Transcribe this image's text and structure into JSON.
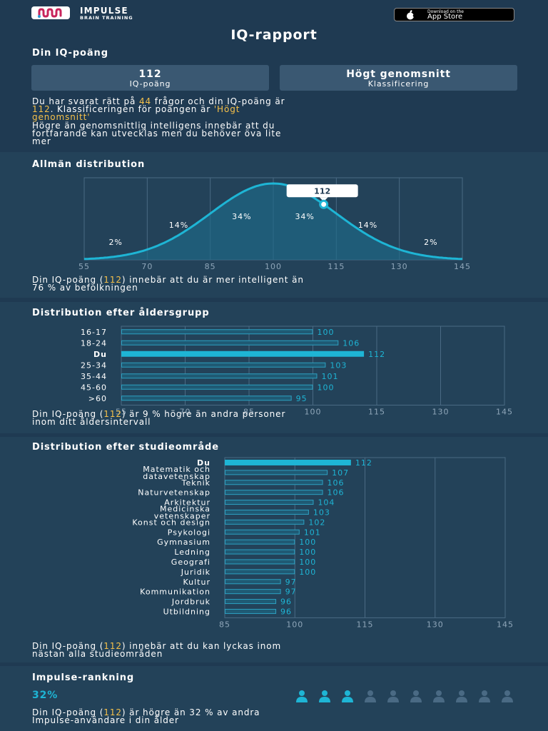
{
  "header": {
    "brand": "IMPULSE",
    "brand_sub": "BRAIN TRAINING",
    "appstore_small": "Download on the",
    "appstore_big": "App Store"
  },
  "page_title": "IQ-rapport",
  "score_section": {
    "heading": "Din IQ-poäng",
    "score_value": "112",
    "score_label": "IQ-poäng",
    "class_value": "Högt genomsnitt",
    "class_label": "Klassificering",
    "p1_a": "Du har svarat rätt på ",
    "p1_b": "44",
    "p1_c": " frågor och din IQ-poäng är",
    "p1_d": "112",
    "p1_e": ". Klassificeringen för poängen är ",
    "p1_f": "'Högt",
    "p1_g": "genomsnitt'",
    "p2_line1": "Högre än genomsnittlig intelligens innebär att du",
    "p2_line2": "fortfarande kan utvecklas men du behöver öva lite",
    "p2_line3": "mer"
  },
  "colors": {
    "background": "#1f3a52",
    "section": "#234259",
    "accent": "#1eb5d5",
    "highlight": "#f5c04a",
    "card": "#3a5872"
  },
  "chart_data": [
    {
      "type": "area",
      "title": "Allmän distribution",
      "x_ticks": [
        55,
        70,
        85,
        100,
        115,
        130,
        145
      ],
      "xlim": [
        55,
        145
      ],
      "mean": 100,
      "sd": 15,
      "segment_labels": [
        {
          "x": 62.5,
          "label": "2%"
        },
        {
          "x": 77.5,
          "label": "14%"
        },
        {
          "x": 92.5,
          "label": "34%"
        },
        {
          "x": 107.5,
          "label": "34%"
        },
        {
          "x": 122.5,
          "label": "14%"
        },
        {
          "x": 137.5,
          "label": "2%"
        }
      ],
      "marker": {
        "x": 112,
        "label": "112"
      },
      "caption_a": "Din IQ-poäng (",
      "caption_b": "112",
      "caption_c": ") innebär att du är mer intelligent än",
      "caption_d": "76 % av befolkningen"
    },
    {
      "type": "bar",
      "title": "Distribution efter åldersgrupp",
      "xlim": [
        55,
        145
      ],
      "x_ticks": [
        55,
        70,
        85,
        100,
        115,
        130,
        145
      ],
      "bars": [
        {
          "label": "16-17",
          "value": 100,
          "highlight": false
        },
        {
          "label": "18-24",
          "value": 106,
          "highlight": false
        },
        {
          "label": "Du",
          "value": 112,
          "highlight": true
        },
        {
          "label": "25-34",
          "value": 103,
          "highlight": false
        },
        {
          "label": "35-44",
          "value": 101,
          "highlight": false
        },
        {
          "label": "45-60",
          "value": 100,
          "highlight": false
        },
        {
          "label": ">60",
          "value": 95,
          "highlight": false
        }
      ],
      "caption_a": "Din IQ-poäng (",
      "caption_b": "112",
      "caption_c": ") är 9 % högre än andra personer",
      "caption_d": "inom ditt åldersintervall"
    },
    {
      "type": "bar",
      "title": "Distribution efter studieområde",
      "xlim": [
        85,
        145
      ],
      "x_ticks": [
        85,
        100,
        115,
        130,
        145
      ],
      "bars": [
        {
          "label": "Du",
          "value": 112,
          "highlight": true
        },
        {
          "label": [
            "Matematik och",
            "datavetenskap"
          ],
          "value": 107,
          "highlight": false
        },
        {
          "label": "Teknik",
          "value": 106,
          "highlight": false
        },
        {
          "label": "Naturvetenskap",
          "value": 106,
          "highlight": false
        },
        {
          "label": "Arkitektur",
          "value": 104,
          "highlight": false
        },
        {
          "label": [
            "Medicinska",
            "vetenskaper"
          ],
          "value": 103,
          "highlight": false
        },
        {
          "label": "Konst och design",
          "value": 102,
          "highlight": false
        },
        {
          "label": "Psykologi",
          "value": 101,
          "highlight": false
        },
        {
          "label": "Gymnasium",
          "value": 100,
          "highlight": false
        },
        {
          "label": "Ledning",
          "value": 100,
          "highlight": false
        },
        {
          "label": "Geografi",
          "value": 100,
          "highlight": false
        },
        {
          "label": "Juridik",
          "value": 100,
          "highlight": false
        },
        {
          "label": "Kultur",
          "value": 97,
          "highlight": false
        },
        {
          "label": "Kommunikation",
          "value": 97,
          "highlight": false
        },
        {
          "label": "Jordbruk",
          "value": 96,
          "highlight": false
        },
        {
          "label": "Utbildning",
          "value": 96,
          "highlight": false
        }
      ],
      "caption_a": "Din IQ-poäng (",
      "caption_b": "112",
      "caption_c": ") innebär att du kan lyckas inom",
      "caption_d": "nästan alla studieområden"
    }
  ],
  "ranking": {
    "heading": "Impulse-rankning",
    "percent": "32%",
    "filled": 3,
    "total": 10,
    "text_a": "Din IQ-poäng (",
    "text_b": "112",
    "text_c": ") är högre än 32 % av andra",
    "text_d": "Impulse-användare i din ålder"
  }
}
